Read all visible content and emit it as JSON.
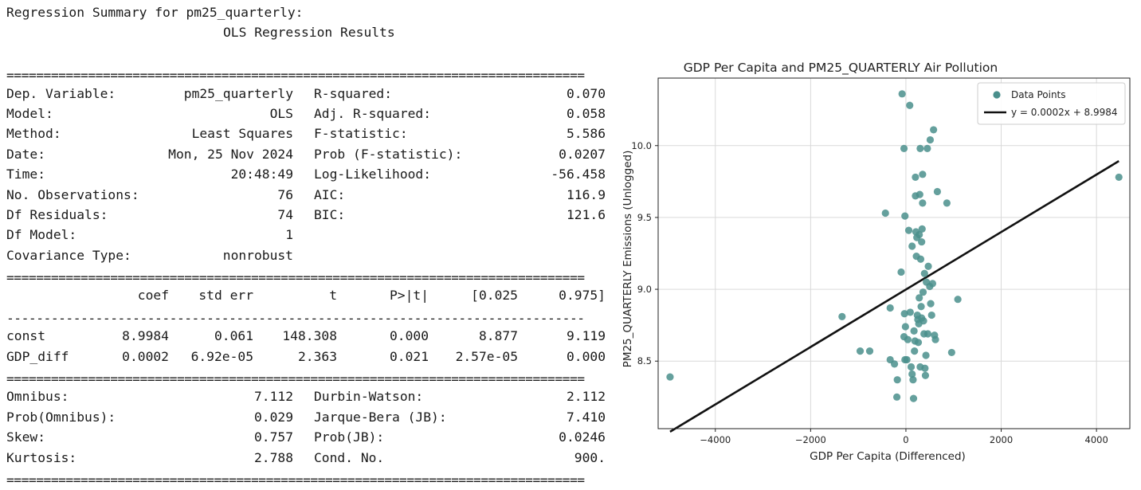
{
  "summary": {
    "heading": "Regression Summary for pm25_quarterly:",
    "subheading": "OLS Regression Results",
    "separator_double": "==============================================================================",
    "separator_single": "------------------------------------------------------------------------------",
    "model_info": [
      {
        "label": "Dep. Variable:",
        "value": "pm25_quarterly",
        "label2": "R-squared:",
        "value2": "0.070"
      },
      {
        "label": "Model:",
        "value": "OLS",
        "label2": "Adj. R-squared:",
        "value2": "0.058"
      },
      {
        "label": "Method:",
        "value": "Least Squares",
        "label2": "F-statistic:",
        "value2": "5.586"
      },
      {
        "label": "Date:",
        "value": "Mon, 25 Nov 2024",
        "label2": "Prob (F-statistic):",
        "value2": "0.0207"
      },
      {
        "label": "Time:",
        "value": "20:48:49",
        "label2": "Log-Likelihood:",
        "value2": "-56.458"
      },
      {
        "label": "No. Observations:",
        "value": "76",
        "label2": "AIC:",
        "value2": "116.9"
      },
      {
        "label": "Df Residuals:",
        "value": "74",
        "label2": "BIC:",
        "value2": "121.6"
      },
      {
        "label": "Df Model:",
        "value": "1",
        "label2": "",
        "value2": ""
      },
      {
        "label": "Covariance Type:",
        "value": "nonrobust",
        "label2": "",
        "value2": ""
      }
    ],
    "coef_headers": [
      "coef",
      "std err",
      "t",
      "P>|t|",
      "[0.025",
      "0.975]"
    ],
    "coef_rows": [
      {
        "name": "const",
        "cells": [
          "8.9984",
          "0.061",
          "148.308",
          "0.000",
          "8.877",
          "9.119"
        ]
      },
      {
        "name": "GDP_diff",
        "cells": [
          "0.0002",
          "6.92e-05",
          "2.363",
          "0.021",
          "2.57e-05",
          "0.000"
        ]
      }
    ],
    "diagnostics": [
      {
        "label": "Omnibus:",
        "value": "7.112",
        "label2": "Durbin-Watson:",
        "value2": "2.112"
      },
      {
        "label": "Prob(Omnibus):",
        "value": "0.029",
        "label2": "Jarque-Bera (JB):",
        "value2": "7.410"
      },
      {
        "label": "Skew:",
        "value": "0.757",
        "label2": "Prob(JB):",
        "value2": "0.0246"
      },
      {
        "label": "Kurtosis:",
        "value": "2.788",
        "label2": "Cond. No.",
        "value2": "900."
      }
    ]
  },
  "chart_data": {
    "type": "scatter",
    "title": "GDP Per Capita and PM25_QUARTERLY Air Pollution",
    "xlabel": "GDP Per Capita (Differenced)",
    "ylabel": "PM25_QUARTERLY Emissions (Unlogged)",
    "xlim": [
      -5200,
      4700
    ],
    "ylim": [
      8.03,
      10.47
    ],
    "xticks": [
      -4000,
      -2000,
      0,
      2000,
      4000
    ],
    "xtick_labels": [
      "−4000",
      "−2000",
      "0",
      "2000",
      "4000"
    ],
    "yticks": [
      8.5,
      9.0,
      9.5,
      10.0
    ],
    "ytick_labels": [
      "8.5",
      "9.0",
      "9.5",
      "10.0"
    ],
    "grid": true,
    "legend_position": "top-right",
    "colors": {
      "points": "#4a8f8c",
      "fit_line": "#111111"
    },
    "series": [
      {
        "name": "Data Points",
        "kind": "scatter",
        "points": [
          [
            -4950,
            8.39
          ],
          [
            -1340,
            8.81
          ],
          [
            -960,
            8.57
          ],
          [
            -760,
            8.57
          ],
          [
            -430,
            9.53
          ],
          [
            -330,
            8.87
          ],
          [
            -330,
            8.51
          ],
          [
            -240,
            8.48
          ],
          [
            -180,
            8.37
          ],
          [
            -190,
            8.25
          ],
          [
            -80,
            10.36
          ],
          [
            -40,
            9.98
          ],
          [
            -20,
            9.51
          ],
          [
            -30,
            8.83
          ],
          [
            -10,
            8.74
          ],
          [
            -40,
            8.67
          ],
          [
            -20,
            8.51
          ],
          [
            20,
            8.51
          ],
          [
            40,
            8.65
          ],
          [
            60,
            9.41
          ],
          [
            80,
            10.28
          ],
          [
            90,
            8.84
          ],
          [
            110,
            8.46
          ],
          [
            130,
            8.41
          ],
          [
            150,
            8.37
          ],
          [
            160,
            8.24
          ],
          [
            170,
            8.71
          ],
          [
            180,
            8.57
          ],
          [
            190,
            8.64
          ],
          [
            200,
            9.78
          ],
          [
            200,
            9.65
          ],
          [
            210,
            9.4
          ],
          [
            220,
            9.23
          ],
          [
            230,
            9.36
          ],
          [
            240,
            8.82
          ],
          [
            250,
            8.79
          ],
          [
            260,
            8.63
          ],
          [
            270,
            8.76
          ],
          [
            280,
            8.94
          ],
          [
            280,
            9.38
          ],
          [
            290,
            9.66
          ],
          [
            300,
            9.98
          ],
          [
            300,
            8.46
          ],
          [
            310,
            9.21
          ],
          [
            320,
            8.88
          ],
          [
            330,
            9.33
          ],
          [
            330,
            8.8
          ],
          [
            340,
            9.42
          ],
          [
            350,
            9.8
          ],
          [
            350,
            9.6
          ],
          [
            360,
            8.98
          ],
          [
            370,
            8.78
          ],
          [
            380,
            8.69
          ],
          [
            390,
            9.11
          ],
          [
            400,
            8.45
          ],
          [
            410,
            8.4
          ],
          [
            420,
            8.54
          ],
          [
            430,
            9.05
          ],
          [
            450,
            9.98
          ],
          [
            470,
            9.16
          ],
          [
            500,
            9.02
          ],
          [
            510,
            10.04
          ],
          [
            520,
            8.9
          ],
          [
            540,
            8.82
          ],
          [
            560,
            9.04
          ],
          [
            580,
            10.11
          ],
          [
            600,
            8.68
          ],
          [
            620,
            8.65
          ],
          [
            660,
            9.68
          ],
          [
            860,
            9.6
          ],
          [
            960,
            8.56
          ],
          [
            1090,
            8.93
          ],
          [
            4470,
            9.78
          ],
          [
            -100,
            9.12
          ],
          [
            130,
            9.3
          ],
          [
            460,
            8.69
          ]
        ]
      },
      {
        "name": "y = 0.0002x + 8.9984",
        "kind": "line",
        "slope": 0.0002,
        "intercept": 8.9984,
        "x_range": [
          -4950,
          4470
        ]
      }
    ]
  }
}
